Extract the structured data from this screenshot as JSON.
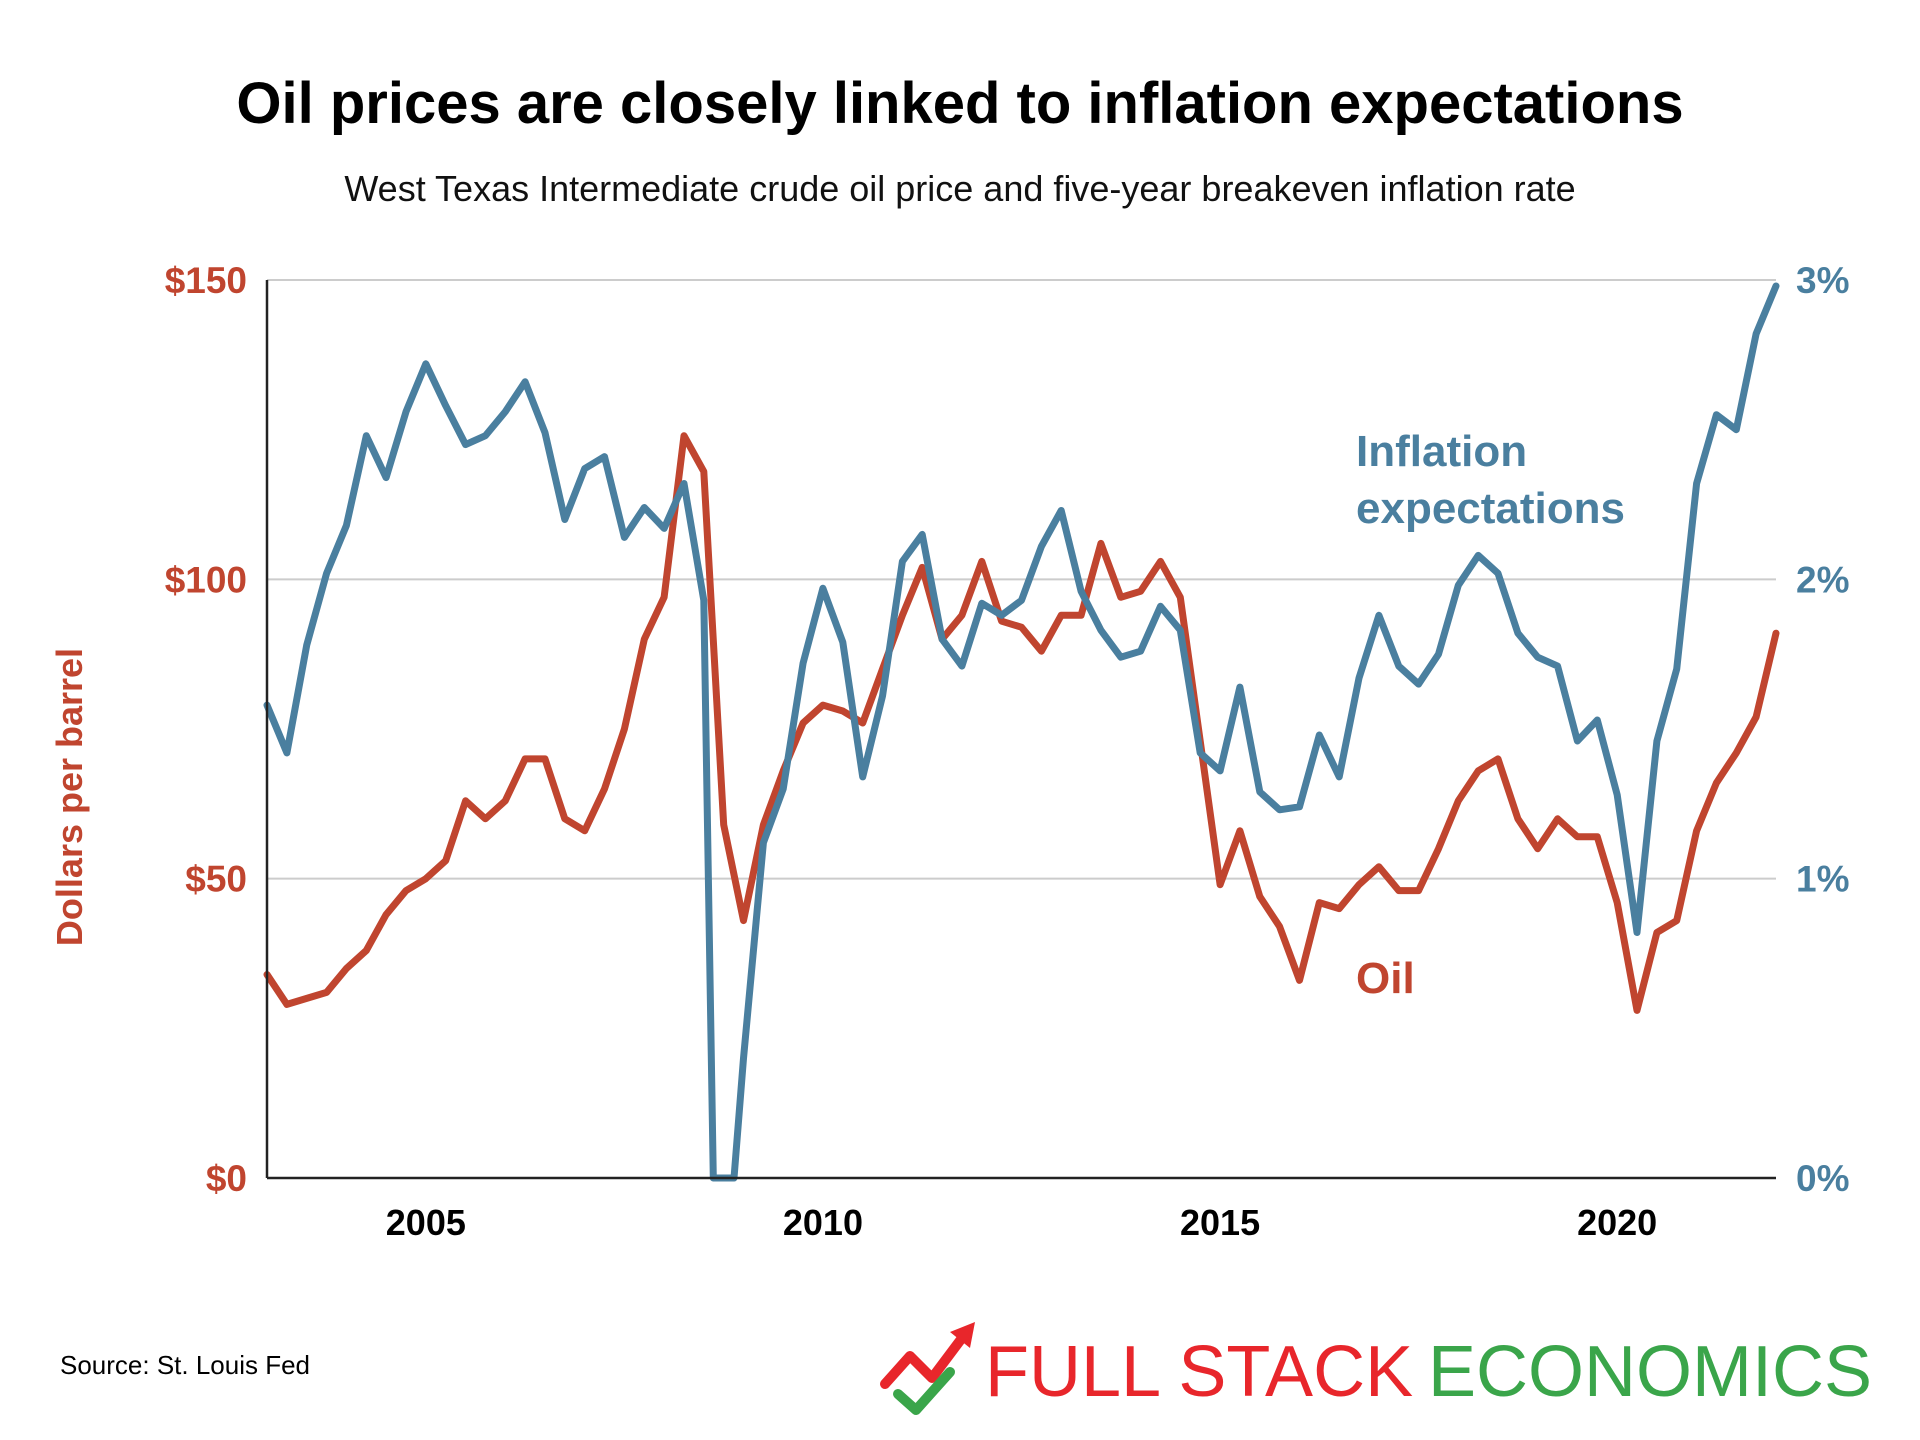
{
  "title": "Oil prices are closely linked to inflation expectations",
  "subtitle": "West Texas Intermediate crude oil price and five-year breakeven inflation rate",
  "source": "Source: St. Louis Fed",
  "brand": {
    "word1": "FULL STACK",
    "word2": "ECONOMICS",
    "color1": "#e8262b",
    "color2": "#3aa54a"
  },
  "colors": {
    "oil": "#c0452f",
    "inflation": "#4a7f9f",
    "grid": "#cccccc",
    "axis": "#222222"
  },
  "chart_data": {
    "type": "line",
    "xlim": [
      2003.0,
      2022.0
    ],
    "x_ticks": [
      2005,
      2010,
      2015,
      2020
    ],
    "x_tick_labels": [
      "2005",
      "2010",
      "2015",
      "2020"
    ],
    "y_left": {
      "label": "Dollars per barrel",
      "lim": [
        0,
        150
      ],
      "ticks": [
        0,
        50,
        100,
        150
      ],
      "tick_labels": [
        "$0",
        "$50",
        "$100",
        "$150"
      ]
    },
    "y_right": {
      "lim": [
        0,
        3
      ],
      "ticks": [
        0,
        1,
        2,
        3
      ],
      "tick_labels": [
        "0%",
        "1%",
        "2%",
        "3%"
      ]
    },
    "grid": true,
    "series": [
      {
        "name": "Oil",
        "axis": "left",
        "x": [
          2003.0,
          2003.25,
          2003.5,
          2003.75,
          2004.0,
          2004.25,
          2004.5,
          2004.75,
          2005.0,
          2005.25,
          2005.5,
          2005.75,
          2006.0,
          2006.25,
          2006.5,
          2006.75,
          2007.0,
          2007.25,
          2007.5,
          2007.75,
          2008.0,
          2008.25,
          2008.5,
          2008.75,
          2009.0,
          2009.25,
          2009.5,
          2009.75,
          2010.0,
          2010.25,
          2010.5,
          2010.75,
          2011.0,
          2011.25,
          2011.5,
          2011.75,
          2012.0,
          2012.25,
          2012.5,
          2012.75,
          2013.0,
          2013.25,
          2013.5,
          2013.75,
          2014.0,
          2014.25,
          2014.5,
          2014.75,
          2015.0,
          2015.25,
          2015.5,
          2015.75,
          2016.0,
          2016.25,
          2016.5,
          2016.75,
          2017.0,
          2017.25,
          2017.5,
          2017.75,
          2018.0,
          2018.25,
          2018.5,
          2018.75,
          2019.0,
          2019.25,
          2019.5,
          2019.75,
          2020.0,
          2020.25,
          2020.5,
          2020.75,
          2021.0,
          2021.25,
          2021.5,
          2021.75,
          2022.0
        ],
        "values": [
          34,
          29,
          30,
          31,
          35,
          38,
          44,
          48,
          50,
          53,
          63,
          60,
          63,
          70,
          70,
          60,
          58,
          65,
          75,
          90,
          97,
          124,
          118,
          59,
          43,
          59,
          68,
          76,
          79,
          78,
          76,
          85,
          94,
          102,
          90,
          94,
          103,
          93,
          92,
          88,
          94,
          94,
          106,
          97,
          98,
          103,
          97,
          73,
          49,
          58,
          47,
          42,
          33,
          46,
          45,
          49,
          52,
          48,
          48,
          55,
          63,
          68,
          70,
          60,
          55,
          60,
          57,
          57,
          46,
          28,
          41,
          43,
          58,
          66,
          71,
          77,
          91
        ]
      },
      {
        "name": "Inflation expectations",
        "axis": "right",
        "x": [
          2003.0,
          2003.25,
          2003.5,
          2003.75,
          2004.0,
          2004.25,
          2004.5,
          2004.75,
          2005.0,
          2005.25,
          2005.5,
          2005.75,
          2006.0,
          2006.25,
          2006.5,
          2006.75,
          2007.0,
          2007.25,
          2007.5,
          2007.75,
          2008.0,
          2008.25,
          2008.5,
          2008.62,
          2008.88,
          2009.0,
          2009.25,
          2009.5,
          2009.75,
          2010.0,
          2010.25,
          2010.5,
          2010.75,
          2011.0,
          2011.25,
          2011.5,
          2011.75,
          2012.0,
          2012.25,
          2012.5,
          2012.75,
          2013.0,
          2013.25,
          2013.5,
          2013.75,
          2014.0,
          2014.25,
          2014.5,
          2014.75,
          2015.0,
          2015.25,
          2015.5,
          2015.75,
          2016.0,
          2016.25,
          2016.5,
          2016.75,
          2017.0,
          2017.25,
          2017.5,
          2017.75,
          2018.0,
          2018.25,
          2018.5,
          2018.75,
          2019.0,
          2019.25,
          2019.5,
          2019.75,
          2020.0,
          2020.25,
          2020.5,
          2020.75,
          2021.0,
          2021.25,
          2021.5,
          2021.75,
          2022.0
        ],
        "values": [
          1.58,
          1.42,
          1.78,
          2.02,
          2.18,
          2.48,
          2.34,
          2.56,
          2.72,
          2.58,
          2.45,
          2.48,
          2.56,
          2.66,
          2.49,
          2.2,
          2.37,
          2.41,
          2.14,
          2.24,
          2.17,
          2.32,
          1.93,
          0.0,
          0.0,
          0.4,
          1.12,
          1.3,
          1.72,
          1.97,
          1.79,
          1.34,
          1.61,
          2.06,
          2.15,
          1.8,
          1.71,
          1.92,
          1.88,
          1.93,
          2.11,
          2.23,
          1.96,
          1.83,
          1.74,
          1.76,
          1.91,
          1.83,
          1.42,
          1.36,
          1.64,
          1.29,
          1.23,
          1.24,
          1.48,
          1.34,
          1.67,
          1.88,
          1.71,
          1.65,
          1.75,
          1.98,
          2.08,
          2.02,
          1.82,
          1.74,
          1.71,
          1.46,
          1.53,
          1.28,
          0.82,
          1.46,
          1.7,
          2.32,
          2.55,
          2.5,
          2.82,
          2.98
        ]
      }
    ],
    "annotations": [
      {
        "text": "Inflation",
        "series": "Inflation expectations"
      },
      {
        "text": "expectations",
        "series": "Inflation expectations"
      },
      {
        "text": "Oil",
        "series": "Oil"
      }
    ]
  }
}
